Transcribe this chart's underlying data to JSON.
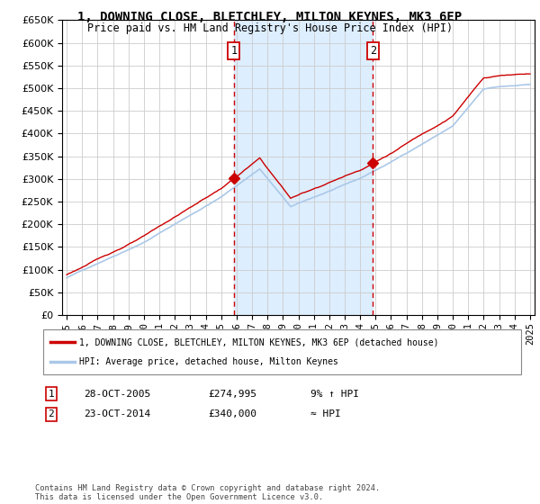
{
  "title": "1, DOWNING CLOSE, BLETCHLEY, MILTON KEYNES, MK3 6EP",
  "subtitle": "Price paid vs. HM Land Registry's House Price Index (HPI)",
  "legend_line1": "1, DOWNING CLOSE, BLETCHLEY, MILTON KEYNES, MK3 6EP (detached house)",
  "legend_line2": "HPI: Average price, detached house, Milton Keynes",
  "transaction1_date": "28-OCT-2005",
  "transaction1_price": "£274,995",
  "transaction1_hpi": "9% ↑ HPI",
  "transaction2_date": "23-OCT-2014",
  "transaction2_price": "£340,000",
  "transaction2_hpi": "≈ HPI",
  "footer": "Contains HM Land Registry data © Crown copyright and database right 2024.\nThis data is licensed under the Open Government Licence v3.0.",
  "ylim": [
    0,
    650000
  ],
  "yticks": [
    0,
    50000,
    100000,
    150000,
    200000,
    250000,
    300000,
    350000,
    400000,
    450000,
    500000,
    550000,
    600000,
    650000
  ],
  "transaction1_x": 2005.83,
  "transaction2_x": 2014.83,
  "hpi_color": "#aac8e8",
  "price_color": "#cc0000",
  "bg_color": "#ffffff",
  "grid_color": "#cccccc",
  "shade_color": "#ddeeff",
  "marker_color": "#cc0000"
}
